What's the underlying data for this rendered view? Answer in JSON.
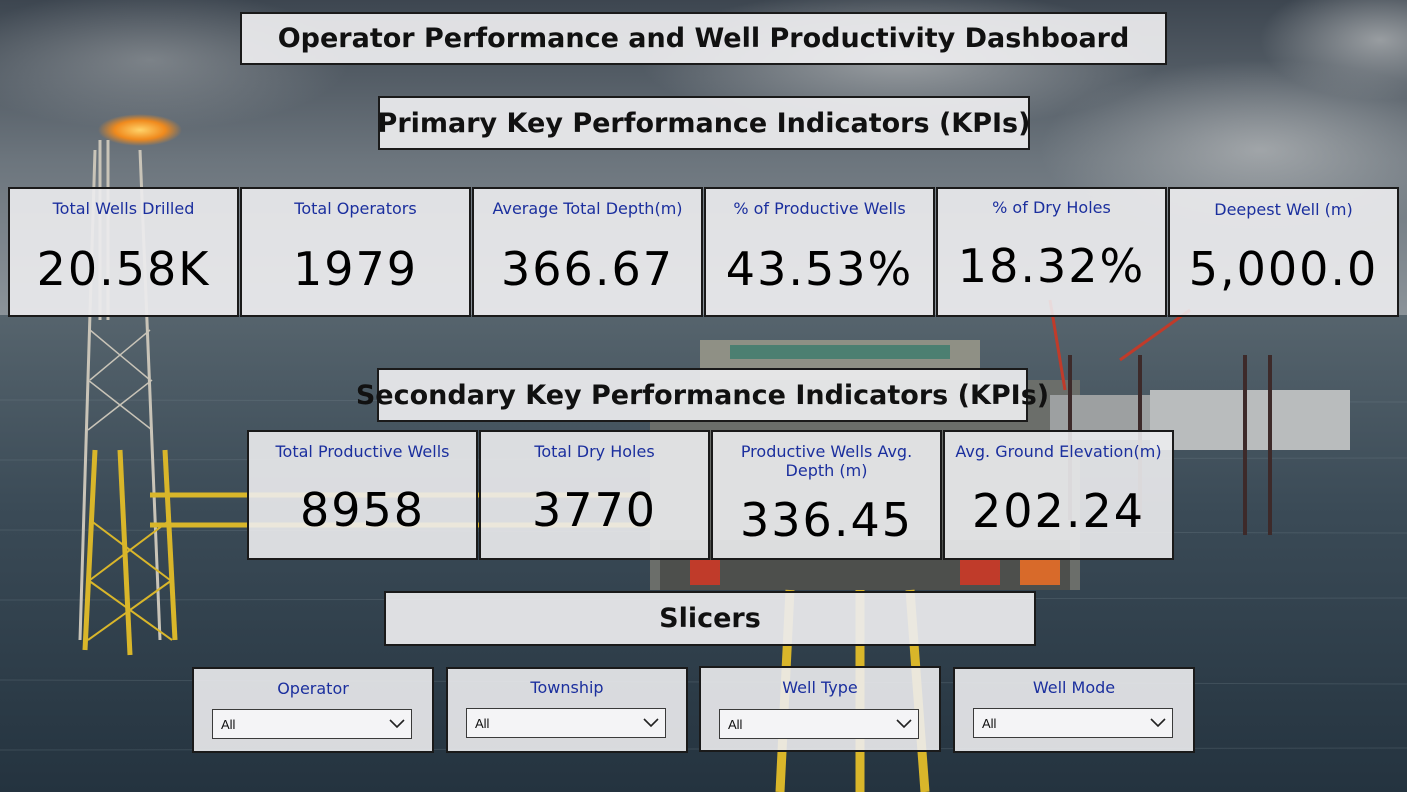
{
  "dashboard": {
    "title": "Operator Performance and Well Productivity Dashboard"
  },
  "primary": {
    "heading": "Primary Key Performance Indicators (KPIs)",
    "kpis": [
      {
        "label": "Total Wells Drilled",
        "value": "20.58K"
      },
      {
        "label": "Total Operators",
        "value": "1979"
      },
      {
        "label": "Average Total Depth(m)",
        "value": "366.67"
      },
      {
        "label": "% of Productive Wells",
        "value": "43.53%"
      },
      {
        "label": "% of Dry Holes",
        "value": "18.32%"
      },
      {
        "label": "Deepest Well (m)",
        "value": "5,000.0"
      }
    ]
  },
  "secondary": {
    "heading": "Secondary Key Performance Indicators (KPIs)",
    "kpis": [
      {
        "label": "Total Productive Wells",
        "value": "8958"
      },
      {
        "label": "Total Dry Holes",
        "value": "3770"
      },
      {
        "label": "Productive Wells Avg. Depth (m)",
        "value": "336.45"
      },
      {
        "label": "Avg. Ground Elevation(m)",
        "value": "202.24"
      }
    ]
  },
  "slicers": {
    "heading": "Slicers",
    "items": [
      {
        "title": "Operator",
        "selected": "All"
      },
      {
        "title": "Township",
        "selected": "All"
      },
      {
        "title": "Well Type",
        "selected": "All"
      },
      {
        "title": "Well Mode",
        "selected": "All"
      }
    ]
  },
  "colors": {
    "label_blue": "#1b2f9e",
    "card_bg": "#ececee",
    "border": "#1a1a1a"
  },
  "icons": {
    "dropdown": "chevron-down-icon"
  }
}
